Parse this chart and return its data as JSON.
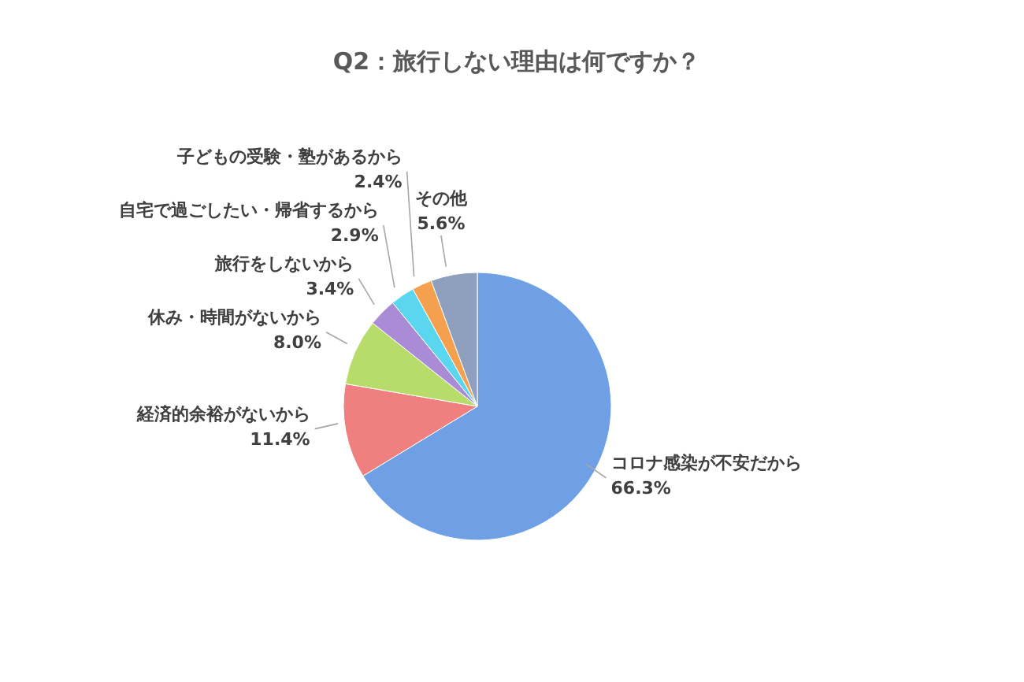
{
  "chart_data": {
    "type": "pie",
    "title": "Q2：旅行しない理由は何ですか？",
    "categories": [
      "コロナ感染が不安だから",
      "経済的余裕がないから",
      "休み・時間がないから",
      "旅行をしないから",
      "自宅で過ごしたい・帰省するから",
      "子どもの受験・塾があるから",
      "その他"
    ],
    "values": [
      66.3,
      11.4,
      8.0,
      3.4,
      2.9,
      2.4,
      5.6
    ],
    "colors": [
      "#6fa0e6",
      "#f08080",
      "#b7dc6a",
      "#a98bd6",
      "#5ad6ef",
      "#f5a04f",
      "#8ea0bd"
    ],
    "value_labels": [
      "66.3%",
      "11.4%",
      "8.0%",
      "3.4%",
      "2.9%",
      "2.4%",
      "5.6%"
    ]
  }
}
